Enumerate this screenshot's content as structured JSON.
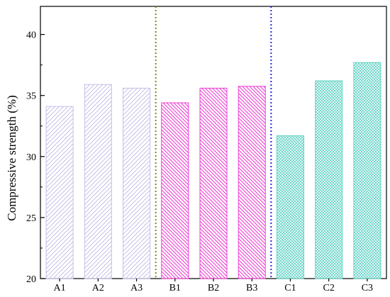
{
  "chart_data": {
    "type": "bar",
    "ylabel": "Compressive strength (%)",
    "ylim": [
      20,
      42.3
    ],
    "yticks": [
      20,
      25,
      30,
      35,
      40
    ],
    "categories": [
      "A1",
      "A2",
      "A3",
      "B1",
      "B2",
      "B3",
      "C1",
      "C2",
      "C3"
    ],
    "values": [
      34.1,
      35.9,
      35.6,
      34.4,
      35.6,
      35.75,
      31.7,
      36.2,
      37.7
    ],
    "groups": [
      {
        "name": "A",
        "members": [
          "A1",
          "A2",
          "A3"
        ],
        "color": "#c8c0e6",
        "pattern": "hatch-forward"
      },
      {
        "name": "B",
        "members": [
          "B1",
          "B2",
          "B3"
        ],
        "color": "#ee3bd2",
        "pattern": "hatch-backward"
      },
      {
        "name": "C",
        "members": [
          "C1",
          "C2",
          "C3"
        ],
        "color": "#5fd2c4",
        "pattern": "crosshatch"
      }
    ],
    "separators": [
      {
        "between": [
          "A3",
          "B1"
        ],
        "style": "dotted",
        "color": "#7a8a1a"
      },
      {
        "between": [
          "B3",
          "C1"
        ],
        "style": "dotted",
        "color": "#2a2ad8"
      }
    ],
    "grid": false,
    "legend": "none"
  }
}
